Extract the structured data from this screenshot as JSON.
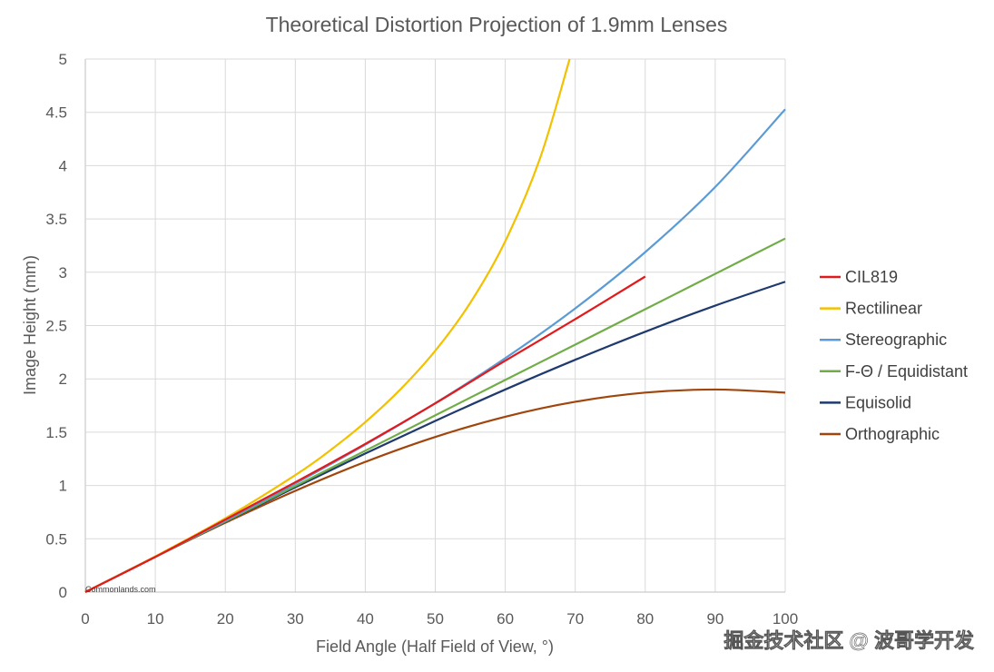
{
  "chart_data": {
    "type": "line",
    "title": "Theoretical Distortion Projection of 1.9mm Lenses",
    "xlabel": "Field Angle (Half Field of View, °)",
    "ylabel": "Image Height (mm)",
    "xlim": [
      0,
      100
    ],
    "ylim": [
      0,
      5
    ],
    "x_ticks": [
      "0",
      "10",
      "20",
      "30",
      "40",
      "50",
      "60",
      "70",
      "80",
      "90",
      "100"
    ],
    "y_ticks": [
      "0",
      "0.5",
      "1",
      "1.5",
      "2",
      "2.5",
      "3",
      "3.5",
      "4",
      "4.5",
      "5"
    ],
    "grid": true,
    "legend_position": "right",
    "series": [
      {
        "name": "CIL819",
        "color": "#e31a1c",
        "x": [
          0,
          10,
          20,
          30,
          40,
          50,
          60,
          70,
          80
        ],
        "y": [
          0,
          0.33,
          0.68,
          1.03,
          1.39,
          1.77,
          2.17,
          2.56,
          2.96
        ]
      },
      {
        "name": "Rectilinear",
        "color": "#f2c100",
        "x": [
          0,
          10,
          20,
          30,
          35,
          40,
          45,
          50,
          55,
          60,
          65,
          69.2
        ],
        "y": [
          0,
          0.335,
          0.692,
          1.097,
          1.33,
          1.594,
          1.9,
          2.264,
          2.713,
          3.291,
          4.075,
          5.0
        ]
      },
      {
        "name": "Stereographic",
        "color": "#5b9bd5",
        "x": [
          0,
          10,
          20,
          30,
          40,
          50,
          60,
          70,
          80,
          90,
          100
        ],
        "y": [
          0,
          0.333,
          0.67,
          1.018,
          1.383,
          1.772,
          2.194,
          2.661,
          3.189,
          3.8,
          4.529
        ]
      },
      {
        "name": "F-Θ / Equidistant",
        "color": "#70ad47",
        "x": [
          0,
          10,
          20,
          30,
          40,
          50,
          60,
          70,
          80,
          90,
          100
        ],
        "y": [
          0,
          0.332,
          0.663,
          0.995,
          1.326,
          1.658,
          1.99,
          2.321,
          2.653,
          2.985,
          3.316
        ]
      },
      {
        "name": "Equisolid",
        "color": "#1f3a6e",
        "x": [
          0,
          10,
          20,
          30,
          40,
          50,
          60,
          70,
          80,
          90,
          100
        ],
        "y": [
          0,
          0.331,
          0.66,
          0.983,
          1.3,
          1.606,
          1.9,
          2.179,
          2.442,
          2.687,
          2.911
        ]
      },
      {
        "name": "Orthographic",
        "color": "#a0460d",
        "x": [
          0,
          10,
          20,
          30,
          40,
          50,
          60,
          70,
          80,
          90,
          100
        ],
        "y": [
          0,
          0.33,
          0.65,
          0.95,
          1.221,
          1.455,
          1.645,
          1.785,
          1.871,
          1.9,
          1.871
        ]
      }
    ]
  },
  "credit": "Commonlands.com",
  "watermark": "掘金技术社区 @ 波哥学开发"
}
